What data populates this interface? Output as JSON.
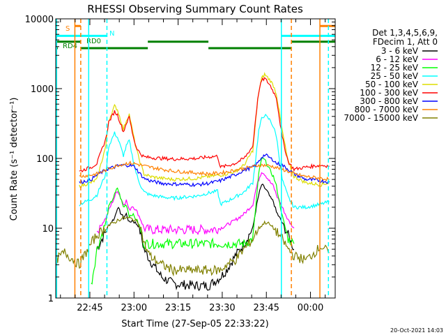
{
  "chart_data": {
    "type": "line",
    "title": "RHESSI Observing Summary Count Rates",
    "xlabel": "Start Time (27-Sep-05 22:33:22)",
    "ylabel": "Count Rate (s⁻¹ detector⁻¹)",
    "x_unit": "minutes after 22:33:22 UT",
    "xlim": [
      0,
      95
    ],
    "ylim": [
      1,
      10000
    ],
    "yscale": "log",
    "x_ticks": [
      {
        "label": "22:45",
        "value": 11.6
      },
      {
        "label": "23:00",
        "value": 26.6
      },
      {
        "label": "23:15",
        "value": 41.6
      },
      {
        "label": "23:30",
        "value": 56.6
      },
      {
        "label": "23:45",
        "value": 71.6
      },
      {
        "label": "00:00",
        "value": 86.6
      }
    ],
    "y_ticks": [
      {
        "label": "1",
        "value": 1
      },
      {
        "label": "10",
        "value": 10
      },
      {
        "label": "100",
        "value": 100
      },
      {
        "label": "1000",
        "value": 1000
      },
      {
        "label": "10000",
        "value": 10000
      }
    ],
    "legend": {
      "position": "right",
      "header": [
        "Det 1,3,4,5,6,9,",
        "FDecim 1, Att 0"
      ]
    },
    "series": [
      {
        "name": "3 - 6 keV",
        "color": "#000000",
        "x": [
          14,
          17,
          18,
          20,
          21,
          23,
          24,
          25,
          26,
          27,
          28,
          29,
          30,
          32,
          36,
          40,
          48,
          52,
          56,
          58,
          61,
          64,
          67,
          68,
          69,
          70,
          71,
          72,
          73,
          74,
          75,
          77,
          79,
          81
        ],
        "y": [
          5,
          9,
          11,
          14,
          20,
          14,
          16,
          12,
          13,
          12,
          11,
          8,
          5,
          3.5,
          2,
          1.6,
          1.5,
          1.5,
          2,
          2.5,
          4,
          6,
          10,
          18,
          30,
          42,
          38,
          33,
          27,
          24,
          17,
          12,
          8,
          5
        ]
      },
      {
        "name": "6 - 12 keV",
        "color": "#ff00ff",
        "x": [
          14,
          17,
          18,
          20,
          21,
          23,
          24,
          25,
          26,
          27,
          28,
          29,
          30,
          32,
          36,
          40,
          48,
          52,
          56,
          58,
          61,
          64,
          67,
          68,
          69,
          70,
          71,
          72,
          73,
          74,
          75,
          77,
          79,
          81
        ],
        "y": [
          9,
          14,
          18,
          28,
          35,
          22,
          25,
          18,
          21,
          19,
          16,
          13,
          10,
          9.5,
          9.5,
          9.5,
          9.5,
          9.5,
          10,
          11,
          13,
          16,
          22,
          35,
          50,
          65,
          60,
          52,
          45,
          40,
          30,
          20,
          13,
          10
        ]
      },
      {
        "name": "12 - 25 keV",
        "color": "#00ff00",
        "x": [
          12,
          14,
          17,
          18,
          20,
          21,
          23,
          24,
          25,
          26,
          27,
          28,
          29,
          30,
          32,
          36,
          40,
          48,
          52,
          56,
          58,
          61,
          64,
          67,
          68,
          69,
          70,
          71,
          72,
          73,
          74,
          75,
          77,
          79,
          81
        ],
        "y": [
          1.5,
          5,
          12,
          20,
          30,
          38,
          20,
          22,
          15,
          16,
          14,
          12,
          9,
          6,
          6,
          6,
          6,
          6,
          6,
          6,
          6,
          6,
          6,
          7,
          20,
          60,
          100,
          95,
          80,
          65,
          55,
          40,
          15,
          7,
          6
        ]
      },
      {
        "name": "25 - 50 keV",
        "color": "#00ffff",
        "x": [
          8,
          12,
          14,
          17,
          18,
          20,
          21,
          23,
          24,
          25,
          26,
          27,
          28,
          29,
          30,
          32,
          36,
          40,
          48,
          52,
          55,
          56,
          58,
          61,
          64,
          67,
          68,
          69,
          70,
          71,
          72,
          73,
          74,
          75,
          77,
          79,
          81,
          85,
          90,
          93
        ],
        "y": [
          22,
          26,
          30,
          60,
          150,
          230,
          200,
          110,
          150,
          180,
          110,
          70,
          50,
          40,
          33,
          30,
          28,
          27,
          29,
          32,
          34,
          22,
          24,
          28,
          33,
          45,
          100,
          250,
          370,
          420,
          380,
          350,
          280,
          210,
          50,
          28,
          20,
          20,
          22,
          24
        ]
      },
      {
        "name": "50 - 100 keV",
        "color": "#dddd00",
        "x": [
          8,
          12,
          14,
          17,
          18,
          20,
          21,
          23,
          24,
          25,
          26,
          27,
          28,
          29,
          30,
          32,
          36,
          40,
          48,
          52,
          56,
          58,
          61,
          64,
          67,
          68,
          69,
          70,
          71,
          72,
          73,
          74,
          75,
          77,
          79,
          81,
          85,
          90,
          93
        ],
        "y": [
          40,
          45,
          50,
          150,
          350,
          560,
          500,
          260,
          350,
          430,
          260,
          160,
          110,
          80,
          60,
          55,
          52,
          50,
          52,
          55,
          58,
          60,
          65,
          80,
          130,
          350,
          900,
          1400,
          1600,
          1450,
          1300,
          1100,
          850,
          250,
          90,
          55,
          45,
          42,
          45
        ]
      },
      {
        "name": "100 - 300 keV",
        "color": "#ff0000",
        "x": [
          8,
          12,
          14,
          17,
          18,
          20,
          21,
          23,
          24,
          25,
          26,
          27,
          28,
          29,
          30,
          32,
          36,
          40,
          48,
          52,
          55,
          56,
          58,
          61,
          64,
          67,
          68,
          69,
          70,
          71,
          72,
          73,
          74,
          75,
          77,
          79,
          81,
          85,
          90,
          93
        ],
        "y": [
          65,
          75,
          85,
          190,
          330,
          470,
          420,
          240,
          320,
          390,
          240,
          160,
          130,
          115,
          105,
          103,
          100,
          98,
          100,
          105,
          108,
          75,
          78,
          85,
          100,
          150,
          400,
          900,
          1300,
          1400,
          1250,
          1100,
          900,
          750,
          200,
          90,
          70,
          75,
          80,
          78
        ]
      },
      {
        "name": "300 - 800 keV",
        "color": "#0000ff",
        "x": [
          8,
          12,
          14,
          17,
          18,
          20,
          21,
          23,
          24,
          25,
          26,
          27,
          28,
          29,
          30,
          32,
          36,
          40,
          48,
          52,
          56,
          58,
          61,
          64,
          67,
          68,
          69,
          70,
          71,
          72,
          73,
          74,
          75,
          77,
          79,
          81,
          85,
          90,
          93
        ],
        "y": [
          45,
          50,
          58,
          68,
          72,
          75,
          78,
          80,
          80,
          80,
          78,
          75,
          65,
          58,
          52,
          48,
          44,
          43,
          42,
          44,
          48,
          52,
          58,
          68,
          75,
          80,
          90,
          105,
          112,
          108,
          100,
          95,
          85,
          80,
          70,
          60,
          50,
          48,
          46
        ]
      },
      {
        "name": "800 - 7000 keV",
        "color": "#ff8000",
        "x": [
          8,
          12,
          14,
          17,
          18,
          20,
          21,
          23,
          24,
          25,
          26,
          27,
          28,
          29,
          30,
          32,
          36,
          40,
          48,
          52,
          56,
          58,
          61,
          64,
          67,
          68,
          69,
          70,
          71,
          72,
          73,
          74,
          75,
          77,
          79,
          81,
          85,
          90,
          93
        ],
        "y": [
          55,
          58,
          60,
          68,
          72,
          76,
          80,
          83,
          85,
          86,
          85,
          84,
          82,
          80,
          78,
          75,
          70,
          66,
          62,
          60,
          62,
          64,
          68,
          72,
          76,
          78,
          80,
          80,
          80,
          79,
          78,
          76,
          74,
          70,
          65,
          60,
          55,
          52,
          50
        ]
      },
      {
        "name": "7000 - 15000 keV",
        "color": "#808000",
        "x": [
          0,
          3,
          8,
          12,
          14,
          17,
          18,
          20,
          21,
          23,
          24,
          25,
          26,
          27,
          28,
          29,
          30,
          32,
          36,
          40,
          48,
          52,
          56,
          58,
          61,
          64,
          67,
          68,
          69,
          70,
          71,
          72,
          73,
          74,
          75,
          77,
          79,
          81,
          85,
          88,
          90,
          93
        ],
        "y": [
          3.5,
          4.5,
          3,
          6,
          8,
          10,
          11,
          12,
          13,
          14,
          14,
          14,
          13.5,
          13,
          12,
          10,
          6,
          4,
          3,
          2.5,
          2.5,
          2.5,
          2.5,
          3,
          3.5,
          5,
          7,
          8.5,
          10,
          11,
          12,
          12,
          11,
          10,
          9,
          7,
          5,
          4,
          3.5,
          4.5,
          5.5,
          4.5
        ]
      }
    ],
    "vertical_lines": [
      {
        "x": 0.3,
        "color": "#00ffff",
        "style": "solid"
      },
      {
        "x": 6.5,
        "color": "#ff8000",
        "style": "solid"
      },
      {
        "x": 8.5,
        "color": "#ff8000",
        "style": "dashed"
      },
      {
        "x": 11.2,
        "color": "#00ffff",
        "style": "solid"
      },
      {
        "x": 17.4,
        "color": "#00ffff",
        "style": "dashed"
      },
      {
        "x": 76.7,
        "color": "#00ffff",
        "style": "solid"
      },
      {
        "x": 80.1,
        "color": "#ff8000",
        "style": "dashed"
      },
      {
        "x": 89.8,
        "color": "#ff8000",
        "style": "solid"
      },
      {
        "x": 92.7,
        "color": "#00ffff",
        "style": "dashed"
      }
    ],
    "flag_bars": [
      {
        "label": "S",
        "color": "#ff8000",
        "y": 7900,
        "segments": [
          [
            6.5,
            8.5
          ],
          [
            89.8,
            95
          ]
        ]
      },
      {
        "label": "N",
        "color": "#00ffff",
        "y": 5700,
        "segments": [
          [
            0,
            17.4
          ],
          [
            76.7,
            95
          ]
        ]
      },
      {
        "label": "RD0",
        "color": "#008000",
        "y": 4700,
        "segments": [
          [
            0,
            8.5
          ],
          [
            31.3,
            51.9
          ],
          [
            80.1,
            95
          ]
        ]
      },
      {
        "label": "RD4",
        "color": "#008000",
        "y": 3800,
        "segments": [
          [
            0,
            0.7
          ],
          [
            8.5,
            31.3
          ],
          [
            51.9,
            80.1
          ]
        ]
      }
    ],
    "footer_timestamp": "20-Oct-2021 14:03"
  }
}
